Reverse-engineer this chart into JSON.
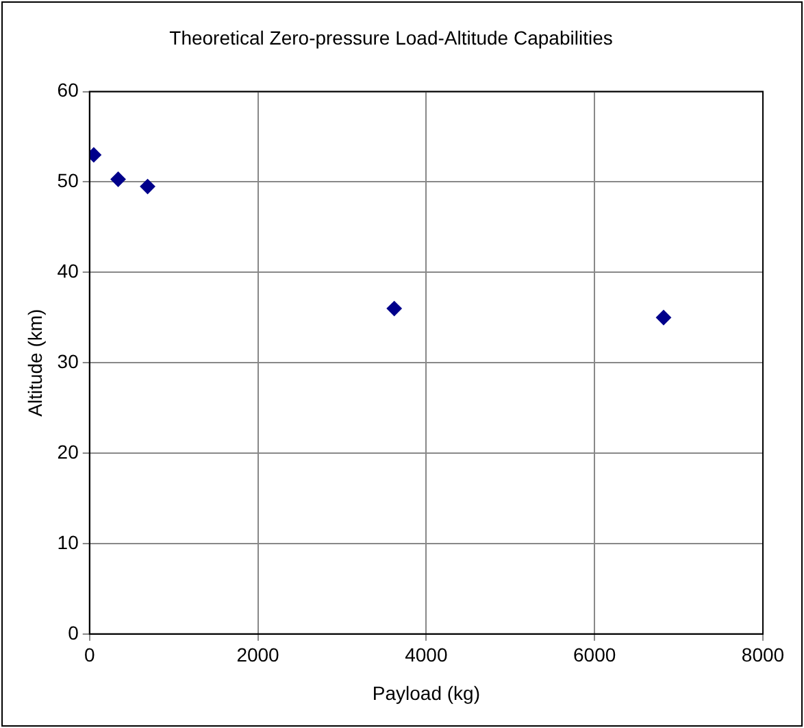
{
  "chart_data": {
    "type": "scatter",
    "title": "Theoretical Zero-pressure Load-Altitude Capabilities",
    "xlabel": "Payload (kg)",
    "ylabel": "Altitude (km)",
    "x": [
      50,
      340,
      690,
      3620,
      6820
    ],
    "series": [
      {
        "color": "#00008b",
        "values": [
          53,
          50.3,
          49.5,
          36,
          35
        ]
      }
    ],
    "xlim": [
      0,
      8000
    ],
    "xticks": [
      0,
      2000,
      4000,
      6000,
      8000
    ],
    "ylim": [
      0,
      60
    ],
    "yticks": [
      0,
      10,
      20,
      30,
      40,
      50,
      60
    ],
    "grid": true,
    "legend": false,
    "marker": "diamond"
  }
}
